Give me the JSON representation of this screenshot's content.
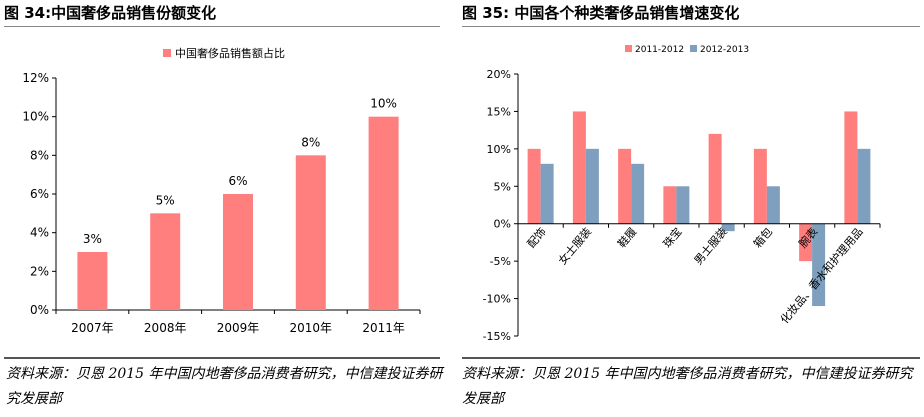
{
  "left": {
    "title": "图 34:中国奢侈品销售份额变化",
    "source": "资料来源：贝恩 2015 年中国内地奢侈品消费者研究，中信建投证券研究发展部",
    "chart_data": {
      "type": "bar",
      "categories": [
        "2007年",
        "2008年",
        "2009年",
        "2010年",
        "2011年"
      ],
      "series": [
        {
          "name": "中国奢侈品销售额占比",
          "values": [
            3,
            5,
            6,
            8,
            10
          ],
          "color": "#FF7F7F",
          "data_labels": [
            "3%",
            "5%",
            "6%",
            "8%",
            "10%"
          ]
        }
      ],
      "ylim": [
        0,
        12
      ],
      "yticks": [
        0,
        2,
        4,
        6,
        8,
        10,
        12
      ],
      "ytick_labels": [
        "0%",
        "2%",
        "4%",
        "6%",
        "8%",
        "10%",
        "12%"
      ],
      "legend": "top-center",
      "grid": false
    }
  },
  "right": {
    "title": "图 35:  中国各个种类奢侈品销售增速变化",
    "source": "资料来源：贝恩 2015 年中国内地奢侈品消费者研究，中信建投证券研究发展部",
    "chart_data": {
      "type": "bar",
      "categories": [
        "配饰",
        "女士服装",
        "鞋履",
        "珠宝",
        "男士服装",
        "箱包",
        "腕表",
        "化妆品、香水和护理用品"
      ],
      "series": [
        {
          "name": "2011-2012",
          "values": [
            10,
            15,
            10,
            5,
            12,
            10,
            -5,
            15
          ],
          "color": "#FF7F7F"
        },
        {
          "name": "2012-2013",
          "values": [
            8,
            10,
            8,
            5,
            -1,
            5,
            -11,
            10
          ],
          "color": "#7F9FBF"
        }
      ],
      "ylim": [
        -15,
        20
      ],
      "yticks": [
        -15,
        -10,
        -5,
        0,
        5,
        10,
        15,
        20
      ],
      "ytick_labels": [
        "-15%",
        "-10%",
        "-5%",
        "0%",
        "5%",
        "10%",
        "15%",
        "20%"
      ],
      "legend": "top-center",
      "grid": false
    }
  }
}
